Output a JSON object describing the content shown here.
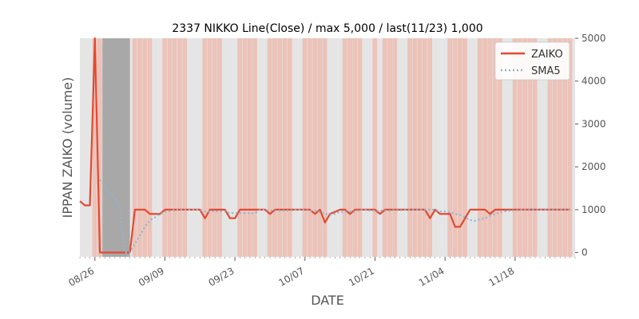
{
  "chart_data": {
    "type": "line",
    "title": "2337 NIKKO Line(Close) / max 5,000 / last(11/23) 1,000",
    "xlabel": "DATE",
    "ylabel": "IPPAN ZAIKO (volume)",
    "ylim": [
      -100,
      5000
    ],
    "yticks": [
      "0",
      "1000",
      "2000",
      "3000",
      "4000",
      "5000"
    ],
    "xticks": [
      "08/26",
      "09/09",
      "09/23",
      "10/07",
      "10/21",
      "11/04",
      "11/18"
    ],
    "x_start": "2019-08-23",
    "x_end": "2019-11-30",
    "y_axis_side": "right",
    "grid": false,
    "legend_position": "top-right",
    "colors": {
      "zaiko": "#e24a33",
      "sma5": "#92b4cf",
      "band": "#f2a896",
      "gap": "#a8a8a8",
      "bg": "#e5e5e5"
    },
    "series": [
      {
        "name": "ZAIKO",
        "style": "solid",
        "x": [
          "2019-08-23",
          "2019-08-24",
          "2019-08-25",
          "2019-08-26",
          "2019-08-27",
          "2019-08-28",
          "2019-08-29",
          "2019-08-30",
          "2019-08-31",
          "2019-09-01",
          "2019-09-02",
          "2019-09-03",
          "2019-09-04",
          "2019-09-05",
          "2019-09-06",
          "2019-09-07",
          "2019-09-08",
          "2019-09-09",
          "2019-09-10",
          "2019-09-11",
          "2019-09-12",
          "2019-09-13",
          "2019-09-14",
          "2019-09-15",
          "2019-09-16",
          "2019-09-17",
          "2019-09-18",
          "2019-09-19",
          "2019-09-20",
          "2019-09-21",
          "2019-09-22",
          "2019-09-23",
          "2019-09-24",
          "2019-09-25",
          "2019-09-26",
          "2019-09-27",
          "2019-09-28",
          "2019-09-29",
          "2019-09-30",
          "2019-10-01",
          "2019-10-02",
          "2019-10-03",
          "2019-10-04",
          "2019-10-05",
          "2019-10-06",
          "2019-10-07",
          "2019-10-08",
          "2019-10-09",
          "2019-10-10",
          "2019-10-11",
          "2019-10-12",
          "2019-10-13",
          "2019-10-14",
          "2019-10-15",
          "2019-10-16",
          "2019-10-17",
          "2019-10-18",
          "2019-10-19",
          "2019-10-20",
          "2019-10-21",
          "2019-10-22",
          "2019-10-23",
          "2019-10-24",
          "2019-10-25",
          "2019-10-26",
          "2019-10-27",
          "2019-10-28",
          "2019-10-29",
          "2019-10-30",
          "2019-10-31",
          "2019-11-01",
          "2019-11-02",
          "2019-11-03",
          "2019-11-04",
          "2019-11-05",
          "2019-11-06",
          "2019-11-07",
          "2019-11-08",
          "2019-11-09",
          "2019-11-10",
          "2019-11-11",
          "2019-11-12",
          "2019-11-13",
          "2019-11-14",
          "2019-11-15",
          "2019-11-16",
          "2019-11-17",
          "2019-11-18",
          "2019-11-19",
          "2019-11-20",
          "2019-11-21",
          "2019-11-22",
          "2019-11-23",
          "2019-11-24",
          "2019-11-25",
          "2019-11-26",
          "2019-11-27",
          "2019-11-28",
          "2019-11-29"
        ],
        "y": [
          1200,
          1100,
          1100,
          5000,
          0,
          0,
          0,
          0,
          0,
          0,
          0,
          1000,
          1000,
          1000,
          900,
          900,
          900,
          1000,
          1000,
          1000,
          1000,
          1000,
          1000,
          1000,
          1000,
          800,
          1000,
          1000,
          1000,
          1000,
          800,
          800,
          1000,
          1000,
          1000,
          1000,
          1000,
          1000,
          900,
          1000,
          1000,
          1000,
          1000,
          1000,
          1000,
          1000,
          1000,
          900,
          1000,
          700,
          900,
          950,
          1000,
          1000,
          900,
          1000,
          1000,
          1000,
          1000,
          1000,
          900,
          1000,
          1000,
          1000,
          1000,
          1000,
          1000,
          1000,
          1000,
          1000,
          800,
          1000,
          900,
          900,
          900,
          600,
          600,
          800,
          1000,
          1000,
          1000,
          1000,
          900,
          1000,
          1000,
          1000,
          1000,
          1000,
          1000,
          1000,
          1000,
          1000,
          1000,
          1000,
          1000,
          1000,
          1000,
          1000,
          1000
        ]
      },
      {
        "name": "SMA5",
        "style": "dotted",
        "x": [
          "2019-08-27",
          "2019-08-28",
          "2019-08-29",
          "2019-08-30",
          "2019-08-31",
          "2019-09-01",
          "2019-09-02",
          "2019-09-03",
          "2019-09-04",
          "2019-09-05",
          "2019-09-06",
          "2019-09-07",
          "2019-09-08",
          "2019-09-09",
          "2019-09-10",
          "2019-09-11",
          "2019-09-12",
          "2019-09-13",
          "2019-09-14",
          "2019-09-15",
          "2019-09-16",
          "2019-09-17",
          "2019-09-18",
          "2019-09-19",
          "2019-09-20",
          "2019-09-21",
          "2019-09-22",
          "2019-09-23",
          "2019-09-24",
          "2019-09-25",
          "2019-09-26",
          "2019-09-27",
          "2019-09-28",
          "2019-09-29",
          "2019-09-30",
          "2019-10-01",
          "2019-10-02",
          "2019-10-03",
          "2019-10-04",
          "2019-10-05",
          "2019-10-06",
          "2019-10-07",
          "2019-10-08",
          "2019-10-09",
          "2019-10-10",
          "2019-10-11",
          "2019-10-12",
          "2019-10-13",
          "2019-10-14",
          "2019-10-15",
          "2019-10-16",
          "2019-10-17",
          "2019-10-18",
          "2019-10-19",
          "2019-10-20",
          "2019-10-21",
          "2019-10-22",
          "2019-10-23",
          "2019-10-24",
          "2019-10-25",
          "2019-10-26",
          "2019-10-27",
          "2019-10-28",
          "2019-10-29",
          "2019-10-30",
          "2019-10-31",
          "2019-11-01",
          "2019-11-02",
          "2019-11-03",
          "2019-11-04",
          "2019-11-05",
          "2019-11-06",
          "2019-11-07",
          "2019-11-08",
          "2019-11-09",
          "2019-11-10",
          "2019-11-11",
          "2019-11-12",
          "2019-11-13",
          "2019-11-14",
          "2019-11-15",
          "2019-11-16",
          "2019-11-17",
          "2019-11-18",
          "2019-11-19",
          "2019-11-20",
          "2019-11-21",
          "2019-11-22",
          "2019-11-23",
          "2019-11-24",
          "2019-11-25",
          "2019-11-26",
          "2019-11-27",
          "2019-11-28",
          "2019-11-29"
        ],
        "y": [
          1700,
          1550,
          1400,
          1250,
          1000,
          0,
          0,
          200,
          400,
          600,
          760,
          820,
          900,
          950,
          970,
          1000,
          1000,
          1000,
          1000,
          1000,
          1000,
          960,
          960,
          960,
          960,
          960,
          920,
          920,
          920,
          920,
          920,
          920,
          1000,
          1000,
          980,
          980,
          980,
          980,
          980,
          1000,
          1000,
          1000,
          980,
          980,
          940,
          900,
          880,
          900,
          950,
          950,
          950,
          950,
          1000,
          1000,
          980,
          980,
          980,
          980,
          980,
          1000,
          980,
          1000,
          1000,
          1000,
          1000,
          1000,
          1000,
          1000,
          960,
          960,
          940,
          900,
          880,
          820,
          760,
          740,
          780,
          800,
          860,
          900,
          940,
          960,
          980,
          980,
          1000,
          1000,
          1000,
          1000,
          1000,
          1000,
          1000,
          1000,
          1000,
          1000,
          1000
        ]
      }
    ],
    "gap": [
      "2019-08-28",
      "2019-09-02"
    ],
    "band_dates": [
      "2019-08-26",
      "2019-08-27",
      "2019-09-03",
      "2019-09-04",
      "2019-09-05",
      "2019-09-06",
      "2019-09-09",
      "2019-09-10",
      "2019-09-11",
      "2019-09-12",
      "2019-09-13",
      "2019-09-17",
      "2019-09-18",
      "2019-09-19",
      "2019-09-20",
      "2019-09-24",
      "2019-09-25",
      "2019-09-26",
      "2019-09-27",
      "2019-09-30",
      "2019-10-01",
      "2019-10-02",
      "2019-10-03",
      "2019-10-04",
      "2019-10-07",
      "2019-10-08",
      "2019-10-09",
      "2019-10-10",
      "2019-10-11",
      "2019-10-15",
      "2019-10-16",
      "2019-10-17",
      "2019-10-18",
      "2019-10-21",
      "2019-10-23",
      "2019-10-24",
      "2019-10-25",
      "2019-10-28",
      "2019-10-29",
      "2019-10-30",
      "2019-10-31",
      "2019-11-01",
      "2019-11-05",
      "2019-11-06",
      "2019-11-07",
      "2019-11-08",
      "2019-11-11",
      "2019-11-12",
      "2019-11-13",
      "2019-11-14",
      "2019-11-15",
      "2019-11-18",
      "2019-11-19",
      "2019-11-20",
      "2019-11-21",
      "2019-11-22",
      "2019-11-25",
      "2019-11-26",
      "2019-11-27",
      "2019-11-28",
      "2019-11-29"
    ]
  }
}
